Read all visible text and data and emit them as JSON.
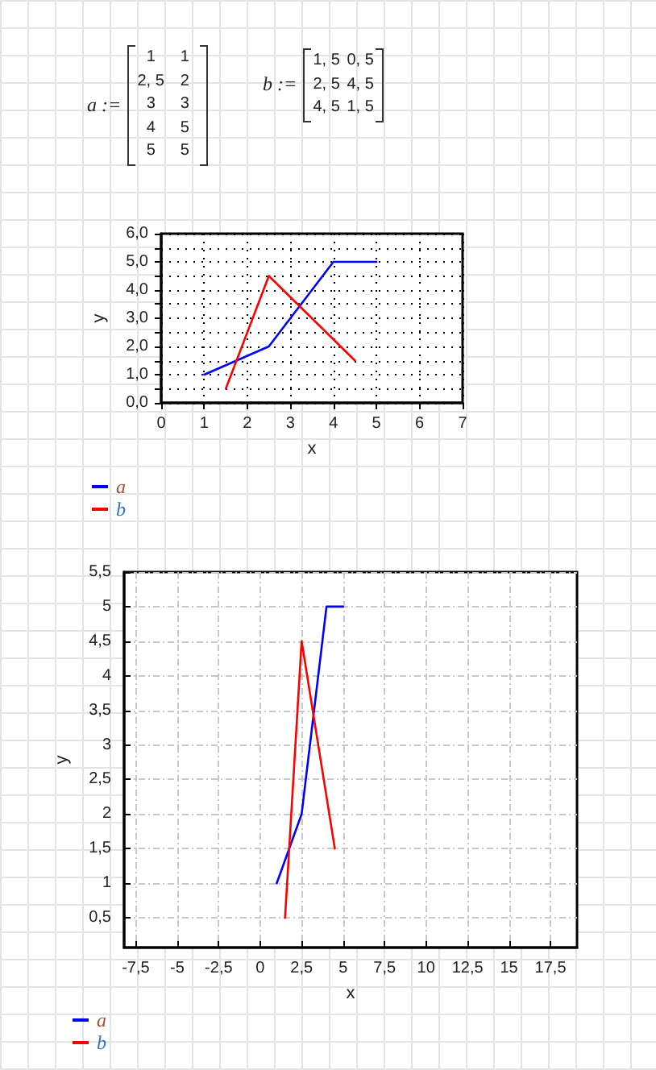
{
  "chart_data": [
    {
      "type": "other",
      "annotations": [
        "a :=",
        "1",
        "1",
        "2, 5",
        "2",
        "3",
        "3",
        "4",
        "5",
        "5",
        "5",
        "b :=",
        "1, 5",
        "0, 5",
        "2, 5",
        "4, 5",
        "4, 5",
        "1, 5"
      ]
    },
    {
      "type": "line",
      "series": [
        {
          "name": "a",
          "color": "#0000ff",
          "x": [
            1,
            2.5,
            3,
            4,
            5
          ],
          "values": [
            1,
            2,
            3,
            5,
            5
          ]
        },
        {
          "name": "b",
          "color": "#ff0000",
          "x": [
            1.5,
            2.5,
            4.5
          ],
          "values": [
            0.5,
            4.5,
            1.5
          ]
        }
      ],
      "xlim": [
        0,
        7
      ],
      "xticks": [
        0,
        1,
        2,
        3,
        4,
        5,
        6,
        7
      ],
      "ylim": [
        0,
        6
      ],
      "yticks": [
        {
          "value": 0,
          "label": "0,0"
        },
        {
          "value": 0.5,
          "label": null
        },
        {
          "value": 1,
          "label": "1,0"
        },
        {
          "value": 1.5,
          "label": null
        },
        {
          "value": 2,
          "label": "2,0"
        },
        {
          "value": 2.5,
          "label": null
        },
        {
          "value": 3,
          "label": "3,0"
        },
        {
          "value": 3.5,
          "label": null
        },
        {
          "value": 4,
          "label": "4,0"
        },
        {
          "value": 4.5,
          "label": null
        },
        {
          "value": 5,
          "label": "5,0"
        },
        {
          "value": 5.5,
          "label": null
        },
        {
          "value": 6,
          "label": "6,0"
        }
      ],
      "xlabel": "x",
      "ylabel": "y",
      "grid": true,
      "legend": "bottom left",
      "marker": "none"
    },
    {
      "type": "line",
      "series": [
        {
          "name": "a",
          "color": "#0000ff",
          "x": [
            1,
            2.5,
            3,
            4,
            5
          ],
          "values": [
            1,
            2,
            3,
            5,
            5
          ]
        },
        {
          "name": "b",
          "color": "#ff0000",
          "x": [
            1.5,
            2.5,
            4.5
          ],
          "values": [
            0.5,
            4.5,
            1.5
          ]
        }
      ],
      "xlim": [
        -8.2,
        19.1
      ],
      "xticks": [
        {
          "value": -7.5,
          "label": "-7,5"
        },
        -5,
        {
          "value": -2.5,
          "label": "-2,5"
        },
        0,
        {
          "value": 2.5,
          "label": "2,5"
        },
        5,
        {
          "value": 7.5,
          "label": "7,5"
        },
        10,
        {
          "value": 12.5,
          "label": "12,5"
        },
        15,
        {
          "value": 17.5,
          "label": "17,5"
        }
      ],
      "ylim": [
        0.07,
        5.5
      ],
      "yticks": [
        {
          "value": 0.5,
          "label": "0,5"
        },
        1,
        {
          "value": 1.5,
          "label": "1,5"
        },
        2,
        {
          "value": 2.5,
          "label": "2,5"
        },
        3,
        {
          "value": 3.5,
          "label": "3,5"
        },
        4,
        {
          "value": 4.5,
          "label": "4,5"
        },
        5,
        {
          "value": 5.5,
          "label": "5,5"
        }
      ],
      "xlabel": "x",
      "ylabel": "y",
      "grid": true,
      "legend": "bottom left",
      "marker": "none"
    }
  ]
}
